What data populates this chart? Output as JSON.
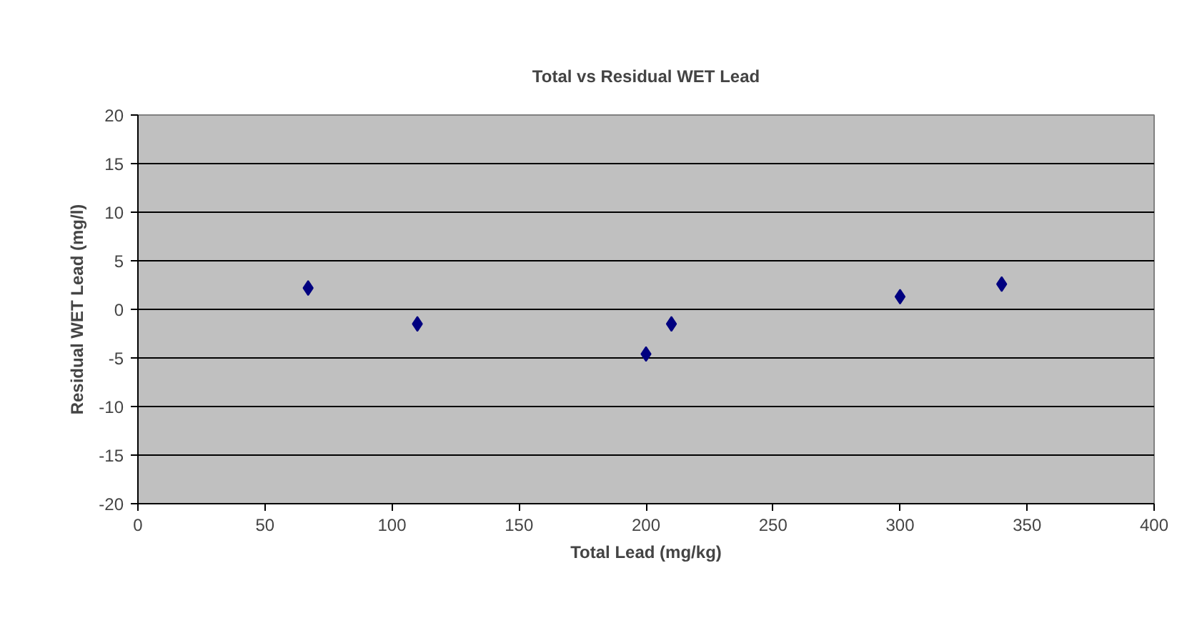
{
  "chart_data": {
    "type": "scatter",
    "title": "Total vs Residual WET Lead",
    "xlabel": "Total Lead (mg/kg)",
    "ylabel": "Residual WET Lead (mg/l)",
    "x": [
      67,
      110,
      200,
      210,
      300,
      340
    ],
    "series": [
      {
        "color": "#000080",
        "values": [
          2.2,
          -1.5,
          -4.6,
          -1.5,
          1.3,
          2.6
        ]
      }
    ],
    "xlim": [
      0,
      400
    ],
    "xticks": [
      0,
      50,
      100,
      150,
      200,
      250,
      300,
      350,
      400
    ],
    "ylim": [
      -20,
      20
    ],
    "yticks": [
      -20,
      -15,
      -10,
      -5,
      0,
      5,
      10,
      15,
      20
    ],
    "grid": "y",
    "marker": "diamond"
  }
}
